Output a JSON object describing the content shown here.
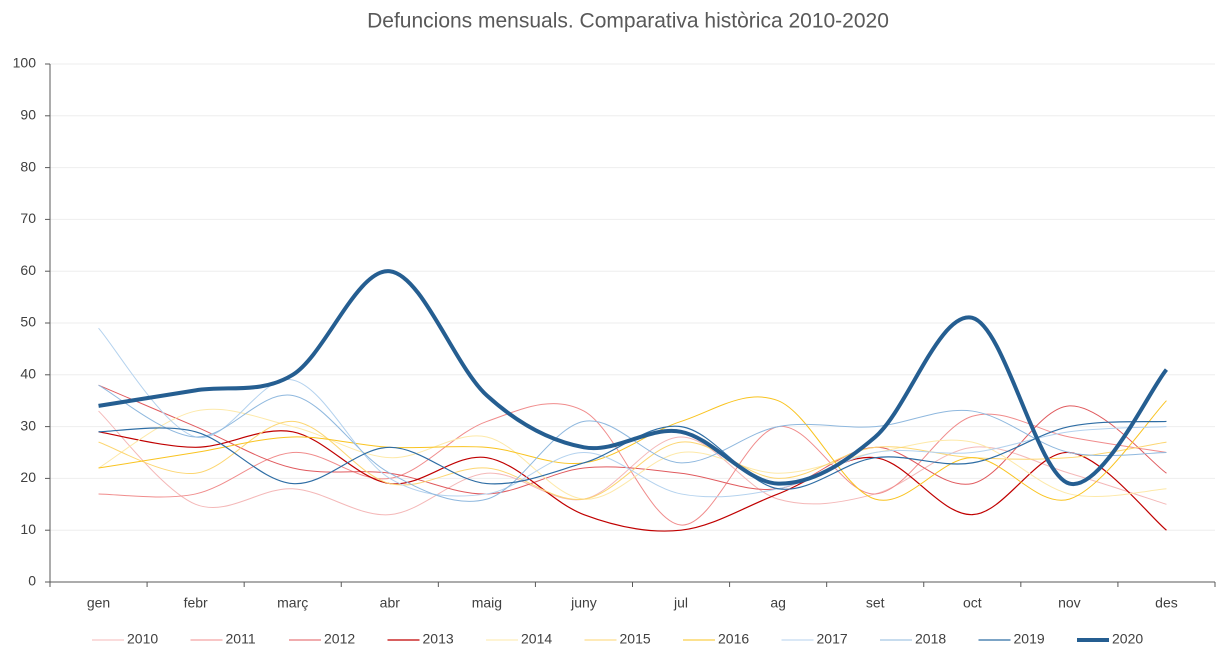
{
  "chart_data": {
    "type": "line",
    "title": "Defuncions mensuals. Comparativa històrica 2010-2020",
    "categories": [
      "gen",
      "febr",
      "març",
      "abr",
      "maig",
      "juny",
      "jul",
      "ag",
      "set",
      "oct",
      "nov",
      "des"
    ],
    "ylim": [
      0,
      100
    ],
    "yticks": [
      0,
      10,
      20,
      30,
      40,
      50,
      60,
      70,
      80,
      90,
      100
    ],
    "grid": true,
    "legend": "bottom",
    "smooth": true,
    "series": [
      {
        "name": "2010",
        "color": "#f4b8b8",
        "width": 1,
        "values": [
          33,
          15,
          18,
          13,
          21,
          16,
          28,
          16,
          17,
          26,
          21,
          15
        ]
      },
      {
        "name": "2011",
        "color": "#f08c8c",
        "width": 1,
        "values": [
          17,
          17,
          25,
          20,
          31,
          33,
          11,
          30,
          17,
          32,
          28,
          25
        ]
      },
      {
        "name": "2012",
        "color": "#e05a5e",
        "width": 1,
        "values": [
          38,
          30,
          22,
          21,
          17,
          22,
          21,
          18,
          26,
          19,
          34,
          21
        ]
      },
      {
        "name": "2013",
        "color": "#c00000",
        "width": 1.2,
        "values": [
          29,
          26,
          29,
          19,
          24,
          13,
          10,
          17,
          24,
          13,
          25,
          10
        ]
      },
      {
        "name": "2014",
        "color": "#fde9a9",
        "width": 1,
        "values": [
          22,
          33,
          30,
          24,
          28,
          16,
          25,
          21,
          25,
          27,
          17,
          18
        ]
      },
      {
        "name": "2015",
        "color": "#fcd672",
        "width": 1,
        "values": [
          27,
          21,
          31,
          19,
          22,
          16,
          27,
          20,
          26,
          24,
          24,
          27
        ]
      },
      {
        "name": "2016",
        "color": "#f9c31f",
        "width": 1,
        "values": [
          22,
          25,
          28,
          26,
          26,
          23,
          31,
          35,
          16,
          24,
          16,
          35
        ]
      },
      {
        "name": "2017",
        "color": "#b4d2ee",
        "width": 1,
        "values": [
          49,
          28,
          39,
          20,
          17,
          25,
          17,
          18,
          25,
          25,
          29,
          30
        ]
      },
      {
        "name": "2018",
        "color": "#8fb8de",
        "width": 1,
        "values": [
          38,
          28,
          36,
          21,
          16,
          31,
          23,
          30,
          30,
          33,
          25,
          25
        ]
      },
      {
        "name": "2019",
        "color": "#2e6da4",
        "width": 1.2,
        "values": [
          29,
          29,
          19,
          26,
          19,
          23,
          30,
          18,
          24,
          23,
          30,
          31
        ]
      },
      {
        "name": "2020",
        "color": "#255e91",
        "width": 4,
        "values": [
          34,
          37,
          40,
          60,
          36,
          26,
          29,
          19,
          28,
          51,
          19,
          41
        ]
      }
    ]
  }
}
